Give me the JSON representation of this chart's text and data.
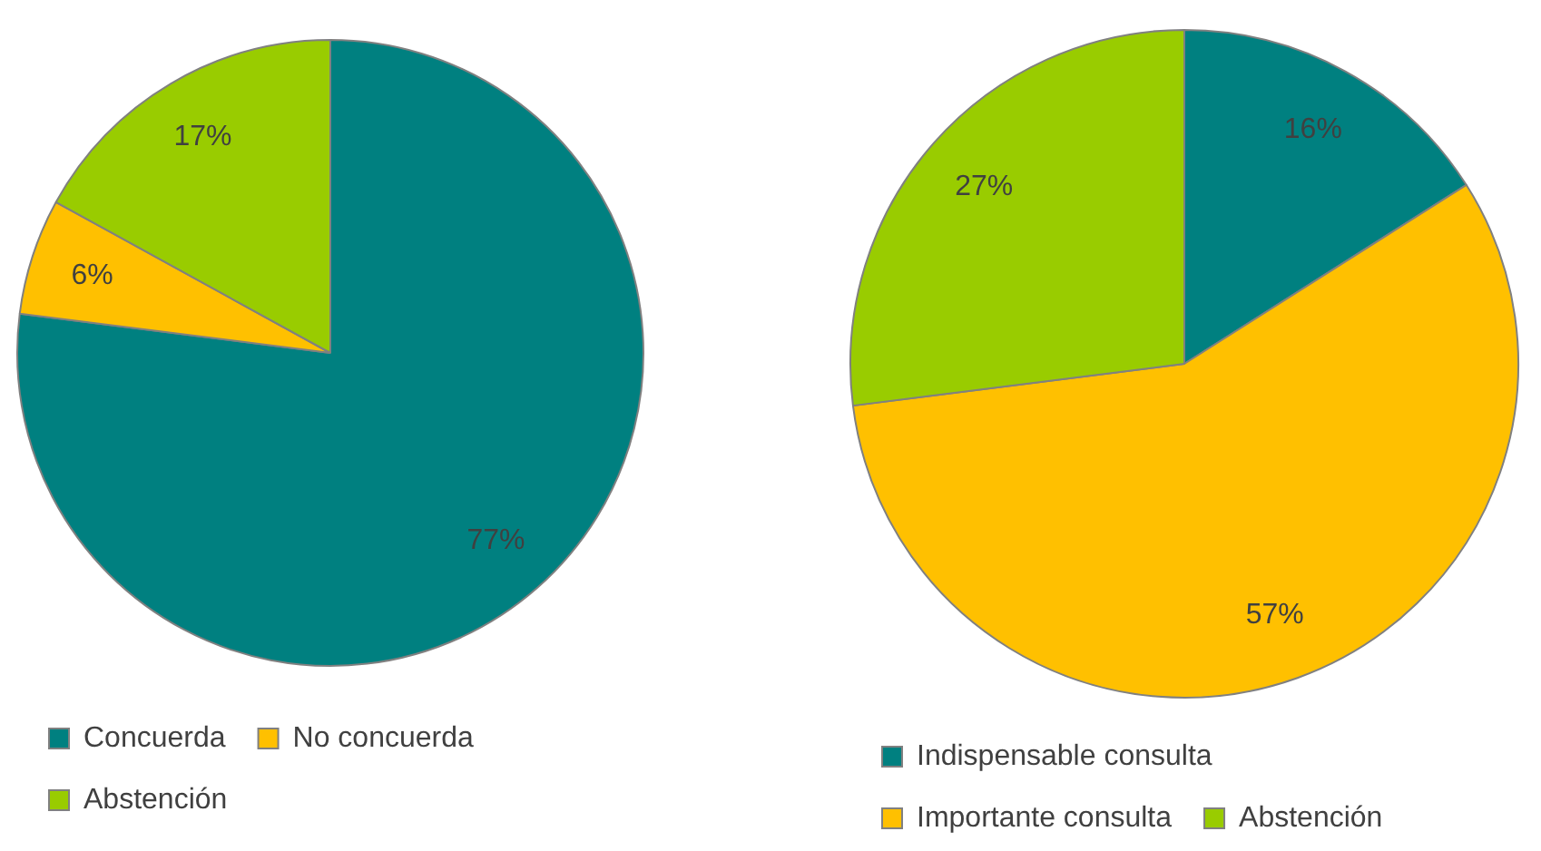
{
  "chart_data": [
    {
      "type": "pie",
      "categories": [
        "Concuerda",
        "No concuerda",
        "Abstención"
      ],
      "values": [
        77,
        6,
        17
      ],
      "value_labels": [
        "77%",
        "6%",
        "17%"
      ],
      "colors": [
        "#008080",
        "#ffc000",
        "#99cc00"
      ],
      "legend": "bottom"
    },
    {
      "type": "pie",
      "categories": [
        "Indispensable consulta",
        "Importante consulta",
        "Abstención"
      ],
      "values": [
        16,
        57,
        27
      ],
      "value_labels": [
        "16%",
        "57%",
        "27%"
      ],
      "colors": [
        "#008080",
        "#ffc000",
        "#99cc00"
      ],
      "legend": "bottom"
    }
  ]
}
